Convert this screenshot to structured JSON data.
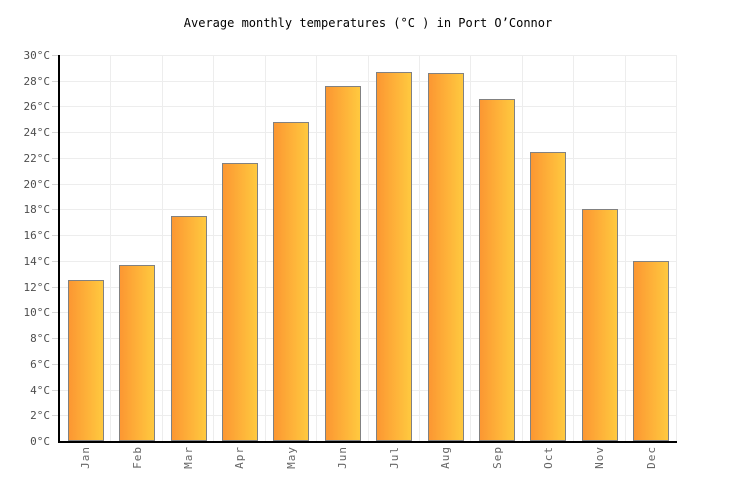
{
  "chart_data": {
    "type": "bar",
    "title": "Average monthly temperatures (°C ) in Port O’Connor",
    "categories": [
      "Jan",
      "Feb",
      "Mar",
      "Apr",
      "May",
      "Jun",
      "Jul",
      "Aug",
      "Sep",
      "Oct",
      "Nov",
      "Dec"
    ],
    "values": [
      12.5,
      13.7,
      17.5,
      21.6,
      24.8,
      27.6,
      28.7,
      28.6,
      26.6,
      22.5,
      18,
      14
    ],
    "xlabel": "",
    "ylabel": "",
    "ylim": [
      0,
      30
    ],
    "ytick_step": 2,
    "ytick_labels": [
      "0°C",
      "2°C",
      "4°C",
      "6°C",
      "8°C",
      "10°C",
      "12°C",
      "14°C",
      "16°C",
      "18°C",
      "20°C",
      "22°C",
      "24°C",
      "26°C",
      "28°C",
      "30°C"
    ],
    "grid": true,
    "legend": "none",
    "colors": {
      "bar_gradient_left": "#fc9732",
      "bar_gradient_right": "#ffc93f",
      "bar_border": "#818181",
      "gridline": "#ededed",
      "axis": "#000000",
      "ytick_label": "#4d4d4d",
      "month_label": "#666666",
      "title": "#000000",
      "background": "#ffffff"
    }
  }
}
